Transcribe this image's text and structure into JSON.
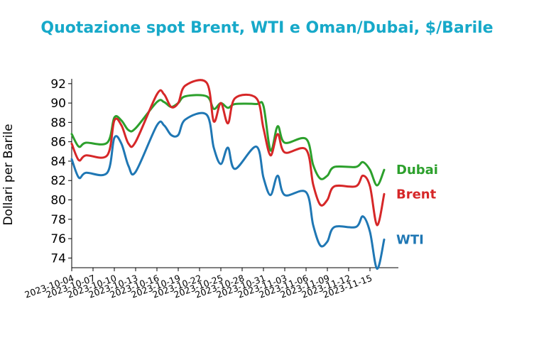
{
  "chart_data": {
    "type": "line",
    "title": "Quotazione spot Brent, WTI e Oman/Dubai, $/Barile",
    "title_color": "#17a9c9",
    "xlabel": "",
    "ylabel": "Dollari per Barile",
    "ylim": [
      73,
      92.5
    ],
    "y_ticks": [
      74,
      76,
      78,
      80,
      82,
      84,
      86,
      88,
      90,
      92
    ],
    "x_range": [
      "2023-10-04",
      "2023-11-19"
    ],
    "x_ticks": [
      "2023-10-04",
      "2023-10-07",
      "2023-10-10",
      "2023-10-13",
      "2023-10-16",
      "2023-10-19",
      "2023-10-22",
      "2023-10-25",
      "2023-10-28",
      "2023-10-31",
      "2023-11-03",
      "2023-11-06",
      "2023-11-09",
      "2023-11-12",
      "2023-11-15"
    ],
    "grid": false,
    "x": [
      "2023-10-04",
      "2023-10-05",
      "2023-10-06",
      "2023-10-09",
      "2023-10-10",
      "2023-10-11",
      "2023-10-12",
      "2023-10-13",
      "2023-10-16",
      "2023-10-17",
      "2023-10-18",
      "2023-10-19",
      "2023-10-20",
      "2023-10-23",
      "2023-10-24",
      "2023-10-25",
      "2023-10-26",
      "2023-10-27",
      "2023-10-30",
      "2023-10-31",
      "2023-11-01",
      "2023-11-02",
      "2023-11-03",
      "2023-11-06",
      "2023-11-07",
      "2023-11-08",
      "2023-11-09",
      "2023-11-10",
      "2023-11-13",
      "2023-11-14",
      "2023-11-15",
      "2023-11-16",
      "2023-11-17"
    ],
    "series": [
      {
        "name": "Dubai",
        "color": "#2ca02c",
        "values": [
          86.8,
          85.5,
          85.9,
          85.9,
          88.5,
          88.2,
          87.2,
          87.4,
          90.1,
          90.1,
          89.6,
          90.0,
          90.7,
          90.7,
          89.4,
          90.0,
          89.5,
          89.9,
          89.9,
          89.7,
          85.1,
          87.6,
          85.9,
          86.3,
          83.6,
          82.2,
          82.5,
          83.4,
          83.4,
          83.9,
          83.1,
          81.5,
          83.1
        ]
      },
      {
        "name": "Brent",
        "color": "#d62728",
        "values": [
          85.8,
          84.1,
          84.6,
          84.6,
          88.2,
          87.7,
          85.8,
          86.0,
          90.9,
          90.9,
          89.6,
          90.0,
          91.8,
          92.1,
          88.1,
          90.0,
          87.9,
          90.5,
          90.5,
          87.4,
          84.6,
          86.8,
          84.9,
          85.2,
          81.6,
          79.5,
          80.0,
          81.4,
          81.4,
          82.5,
          81.4,
          77.4,
          80.6
        ]
      },
      {
        "name": "WTI",
        "color": "#1f77b4",
        "values": [
          84.2,
          82.3,
          82.8,
          82.8,
          86.4,
          85.8,
          83.5,
          82.9,
          87.7,
          87.7,
          86.7,
          86.7,
          88.3,
          88.8,
          85.4,
          83.7,
          85.4,
          83.2,
          85.5,
          82.3,
          80.5,
          82.5,
          80.5,
          80.8,
          77.4,
          75.3,
          75.7,
          77.2,
          77.2,
          78.3,
          76.7,
          72.9,
          75.9
        ]
      }
    ]
  }
}
